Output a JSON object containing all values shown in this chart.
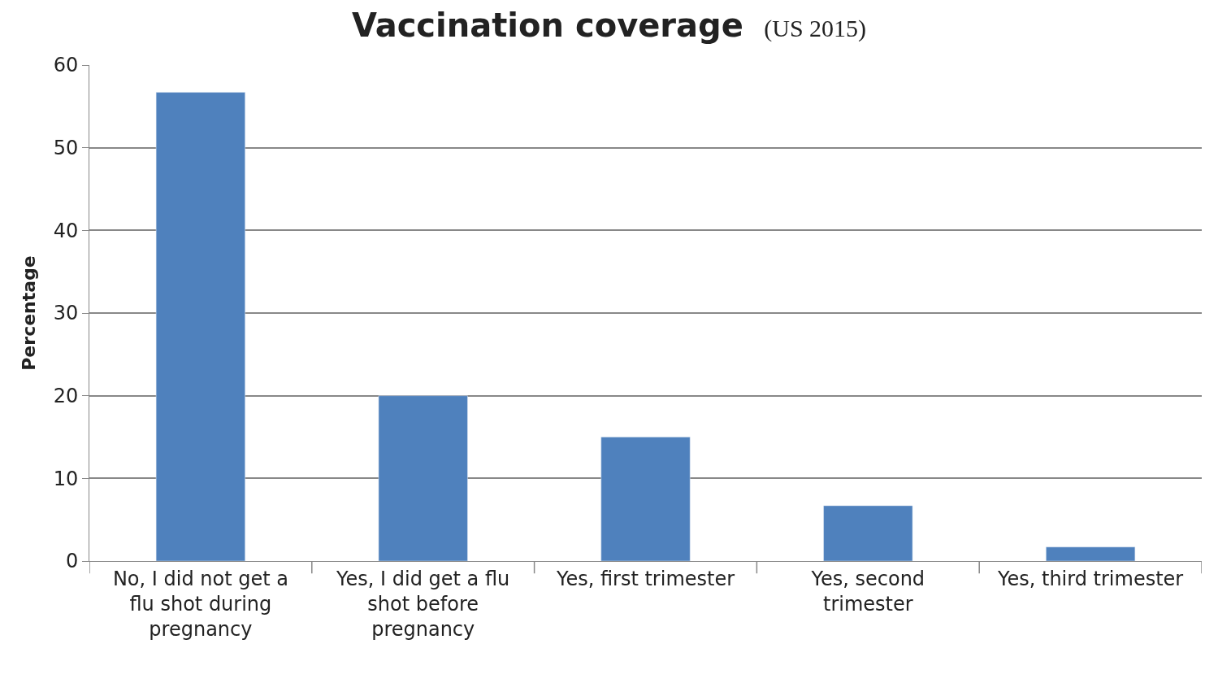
{
  "chart_data": {
    "type": "bar",
    "title": "Vaccination coverage",
    "subtitle": "(US 2015)",
    "ylabel": "Percentage",
    "categories": [
      "No, I did not get a flu shot during pregnancy",
      "Yes, I did get a flu shot before pregnancy",
      "Yes, first trimester",
      "Yes, second trimester",
      "Yes, third trimester"
    ],
    "values": [
      56.7,
      20,
      15,
      6.7,
      1.7
    ],
    "color": "#4f81bd",
    "ylim": [
      0,
      60
    ],
    "yticks": [
      0,
      10,
      20,
      30,
      40,
      50,
      60
    ],
    "grid": "y",
    "legend": false
  }
}
